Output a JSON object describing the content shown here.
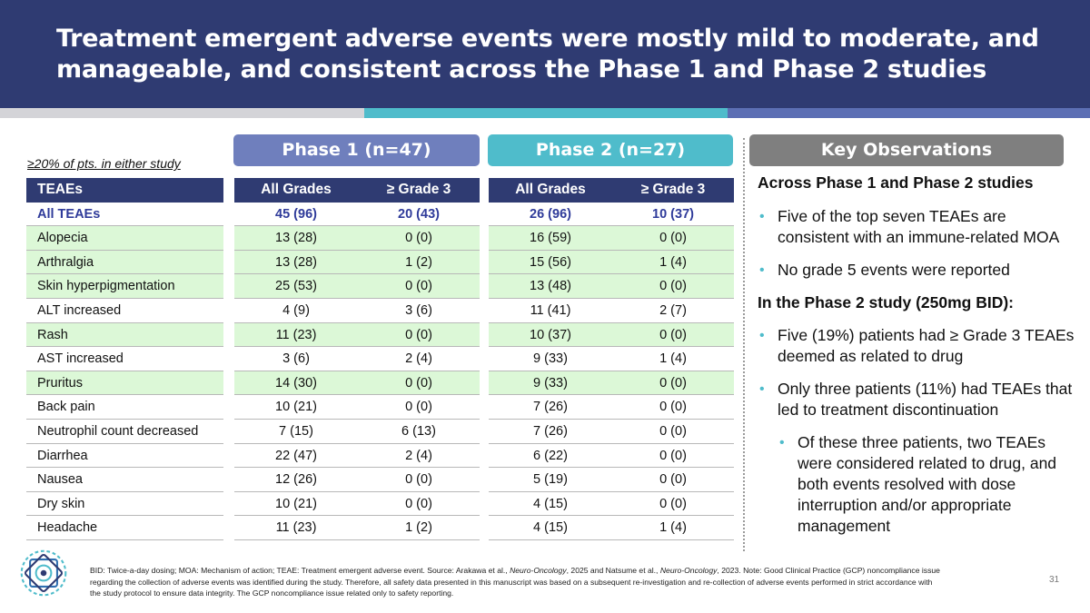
{
  "title": "Treatment emergent adverse events were mostly mild to moderate, and manageable, and consistent across the Phase 1 and Phase 2 studies",
  "subset_note": "≥20% of pts. in either study",
  "phase1_label": "Phase  1 (n=47)",
  "phase2_label": "Phase 2 (n=27)",
  "table": {
    "headers": [
      "TEAEs",
      "All Grades",
      "≥ Grade 3",
      "All Grades",
      "≥ Grade 3"
    ],
    "rows": [
      [
        "All TEAEs",
        "45 (96)",
        "20 (43)",
        "26 (96)",
        "10 (37)"
      ],
      [
        "Alopecia",
        "13 (28)",
        "0 (0)",
        "16 (59)",
        "0 (0)"
      ],
      [
        "Arthralgia",
        "13 (28)",
        "1 (2)",
        "15 (56)",
        "1 (4)"
      ],
      [
        "Skin hyperpigmentation",
        "25 (53)",
        "0 (0)",
        "13 (48)",
        "0 (0)"
      ],
      [
        "ALT increased",
        "4 (9)",
        "3 (6)",
        "11 (41)",
        "2 (7)"
      ],
      [
        "Rash",
        "11 (23)",
        "0 (0)",
        "10 (37)",
        "0 (0)"
      ],
      [
        "AST increased",
        "3 (6)",
        "2 (4)",
        "9 (33)",
        "1 (4)"
      ],
      [
        "Pruritus",
        "14 (30)",
        "0 (0)",
        "9 (33)",
        "0 (0)"
      ],
      [
        "Back pain",
        "10 (21)",
        "0 (0)",
        "7 (26)",
        "0 (0)"
      ],
      [
        "Neutrophil count decreased",
        "7 (15)",
        "6 (13)",
        "7 (26)",
        "0 (0)"
      ],
      [
        "Diarrhea",
        "22 (47)",
        "2 (4)",
        "6 (22)",
        "0 (0)"
      ],
      [
        "Nausea",
        "12 (26)",
        "0 (0)",
        "5 (19)",
        "0 (0)"
      ],
      [
        "Dry skin",
        "10 (21)",
        "0 (0)",
        "4 (15)",
        "0 (0)"
      ],
      [
        "Headache",
        "11 (23)",
        "1 (2)",
        "4 (15)",
        "1 (4)"
      ]
    ]
  },
  "key_observations": {
    "title": "Key Observations",
    "heading1": "Across Phase 1 and Phase 2 studies",
    "bullet1": "Five of the top seven TEAEs are consistent with an immune-related MOA",
    "bullet2": "No grade 5 events were reported",
    "heading2": "In the Phase 2 study (250mg BID):",
    "bullet3": "Five (19%) patients had ≥ Grade 3 TEAEs deemed as related to drug",
    "bullet4": "Only three patients (11%) had TEAEs that led to treatment discontinuation",
    "sub_bullet": "Of these three patients, two TEAEs were considered related to drug, and both events resolved with dose interruption and/or appropriate management"
  },
  "footnote": {
    "part1": "BID: Twice-a-day dosing; MOA: Mechanism of action; TEAE: Treatment emergent adverse event. Source: Arakawa et al., ",
    "journal1": "Neuro-Oncology",
    "part2": ", 2025 and Natsume et al., ",
    "journal2": "Neuro-Oncology",
    "part3": ", 2023. Note: Good Clinical Practice (GCP) noncompliance issue regarding the collection of adverse events was identified during the study. Therefore, all safety data presented in this manuscript was based on a subsequent re-investigation and re-collection of adverse events performed in strict accordance with the study protocol to ensure data integrity. The GCP noncompliance issue related only to safety reporting."
  },
  "page_number": "31",
  "colors": {
    "header_bg": "#2f3b72",
    "phase1": "#6f7fbd",
    "phase2": "#4fbccb",
    "key_obs": "#7f7f7f",
    "highlight_row": "#dcf8d7",
    "all_teaes_text": "#2f3b9a"
  }
}
